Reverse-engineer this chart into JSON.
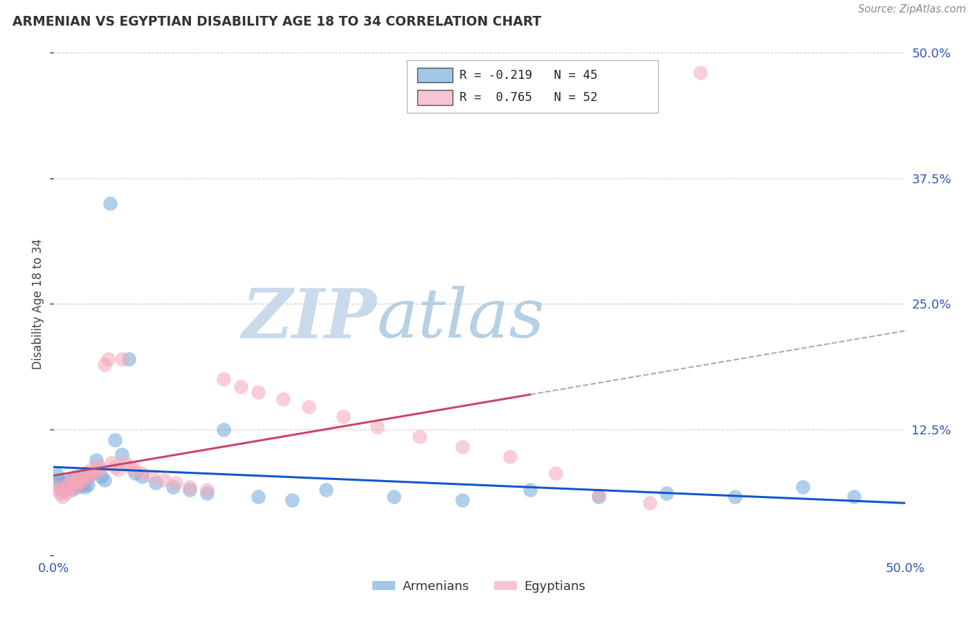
{
  "title": "ARMENIAN VS EGYPTIAN DISABILITY AGE 18 TO 34 CORRELATION CHART",
  "source": "Source: ZipAtlas.com",
  "ylabel": "Disability Age 18 to 34",
  "xlim": [
    0.0,
    0.5
  ],
  "ylim": [
    0.0,
    0.5
  ],
  "xtick_positions": [
    0.0,
    0.125,
    0.25,
    0.375,
    0.5
  ],
  "ytick_positions": [
    0.0,
    0.125,
    0.25,
    0.375,
    0.5
  ],
  "xtick_labels": [
    "0.0%",
    "",
    "",
    "",
    "50.0%"
  ],
  "ytick_labels": [
    "",
    "12.5%",
    "25.0%",
    "37.5%",
    "50.0%"
  ],
  "legend_armenian": "Armenians",
  "legend_egyptian": "Egyptians",
  "R_armenian": -0.219,
  "N_armenian": 45,
  "R_egyptian": 0.765,
  "N_egyptian": 52,
  "armenian_color": "#6fa8dc",
  "egyptian_color": "#f4a7b9",
  "armenian_line_color": "#1155cc",
  "egyptian_line_color": "#cc4466",
  "watermark_zip_color": "#c8d8ec",
  "watermark_atlas_color": "#b8d4e8",
  "armenian_x": [
    0.002,
    0.003,
    0.004,
    0.005,
    0.006,
    0.007,
    0.008,
    0.009,
    0.01,
    0.011,
    0.012,
    0.013,
    0.014,
    0.015,
    0.016,
    0.017,
    0.018,
    0.019,
    0.02,
    0.022,
    0.025,
    0.028,
    0.03,
    0.033,
    0.036,
    0.04,
    0.044,
    0.048,
    0.052,
    0.06,
    0.07,
    0.08,
    0.09,
    0.1,
    0.12,
    0.14,
    0.16,
    0.2,
    0.24,
    0.28,
    0.32,
    0.36,
    0.4,
    0.44,
    0.47
  ],
  "armenian_y": [
    0.08,
    0.075,
    0.07,
    0.068,
    0.065,
    0.072,
    0.068,
    0.075,
    0.07,
    0.065,
    0.072,
    0.078,
    0.068,
    0.075,
    0.07,
    0.072,
    0.068,
    0.075,
    0.07,
    0.08,
    0.095,
    0.078,
    0.075,
    0.35,
    0.115,
    0.1,
    0.195,
    0.082,
    0.078,
    0.072,
    0.068,
    0.065,
    0.062,
    0.125,
    0.058,
    0.055,
    0.065,
    0.058,
    0.055,
    0.065,
    0.058,
    0.062,
    0.058,
    0.068,
    0.058
  ],
  "egyptian_x": [
    0.002,
    0.003,
    0.004,
    0.005,
    0.006,
    0.007,
    0.008,
    0.009,
    0.01,
    0.011,
    0.012,
    0.013,
    0.014,
    0.015,
    0.016,
    0.017,
    0.018,
    0.019,
    0.02,
    0.022,
    0.024,
    0.026,
    0.028,
    0.03,
    0.032,
    0.034,
    0.036,
    0.038,
    0.04,
    0.042,
    0.045,
    0.048,
    0.052,
    0.058,
    0.065,
    0.072,
    0.08,
    0.09,
    0.1,
    0.11,
    0.12,
    0.135,
    0.15,
    0.17,
    0.19,
    0.215,
    0.24,
    0.268,
    0.295,
    0.32,
    0.35,
    0.38
  ],
  "egyptian_y": [
    0.065,
    0.068,
    0.062,
    0.058,
    0.065,
    0.062,
    0.068,
    0.072,
    0.068,
    0.075,
    0.072,
    0.068,
    0.075,
    0.078,
    0.072,
    0.08,
    0.075,
    0.082,
    0.078,
    0.085,
    0.082,
    0.09,
    0.085,
    0.19,
    0.195,
    0.092,
    0.088,
    0.085,
    0.195,
    0.092,
    0.088,
    0.085,
    0.082,
    0.078,
    0.075,
    0.072,
    0.068,
    0.065,
    0.175,
    0.168,
    0.162,
    0.155,
    0.148,
    0.138,
    0.128,
    0.118,
    0.108,
    0.098,
    0.082,
    0.06,
    0.052,
    0.48
  ]
}
